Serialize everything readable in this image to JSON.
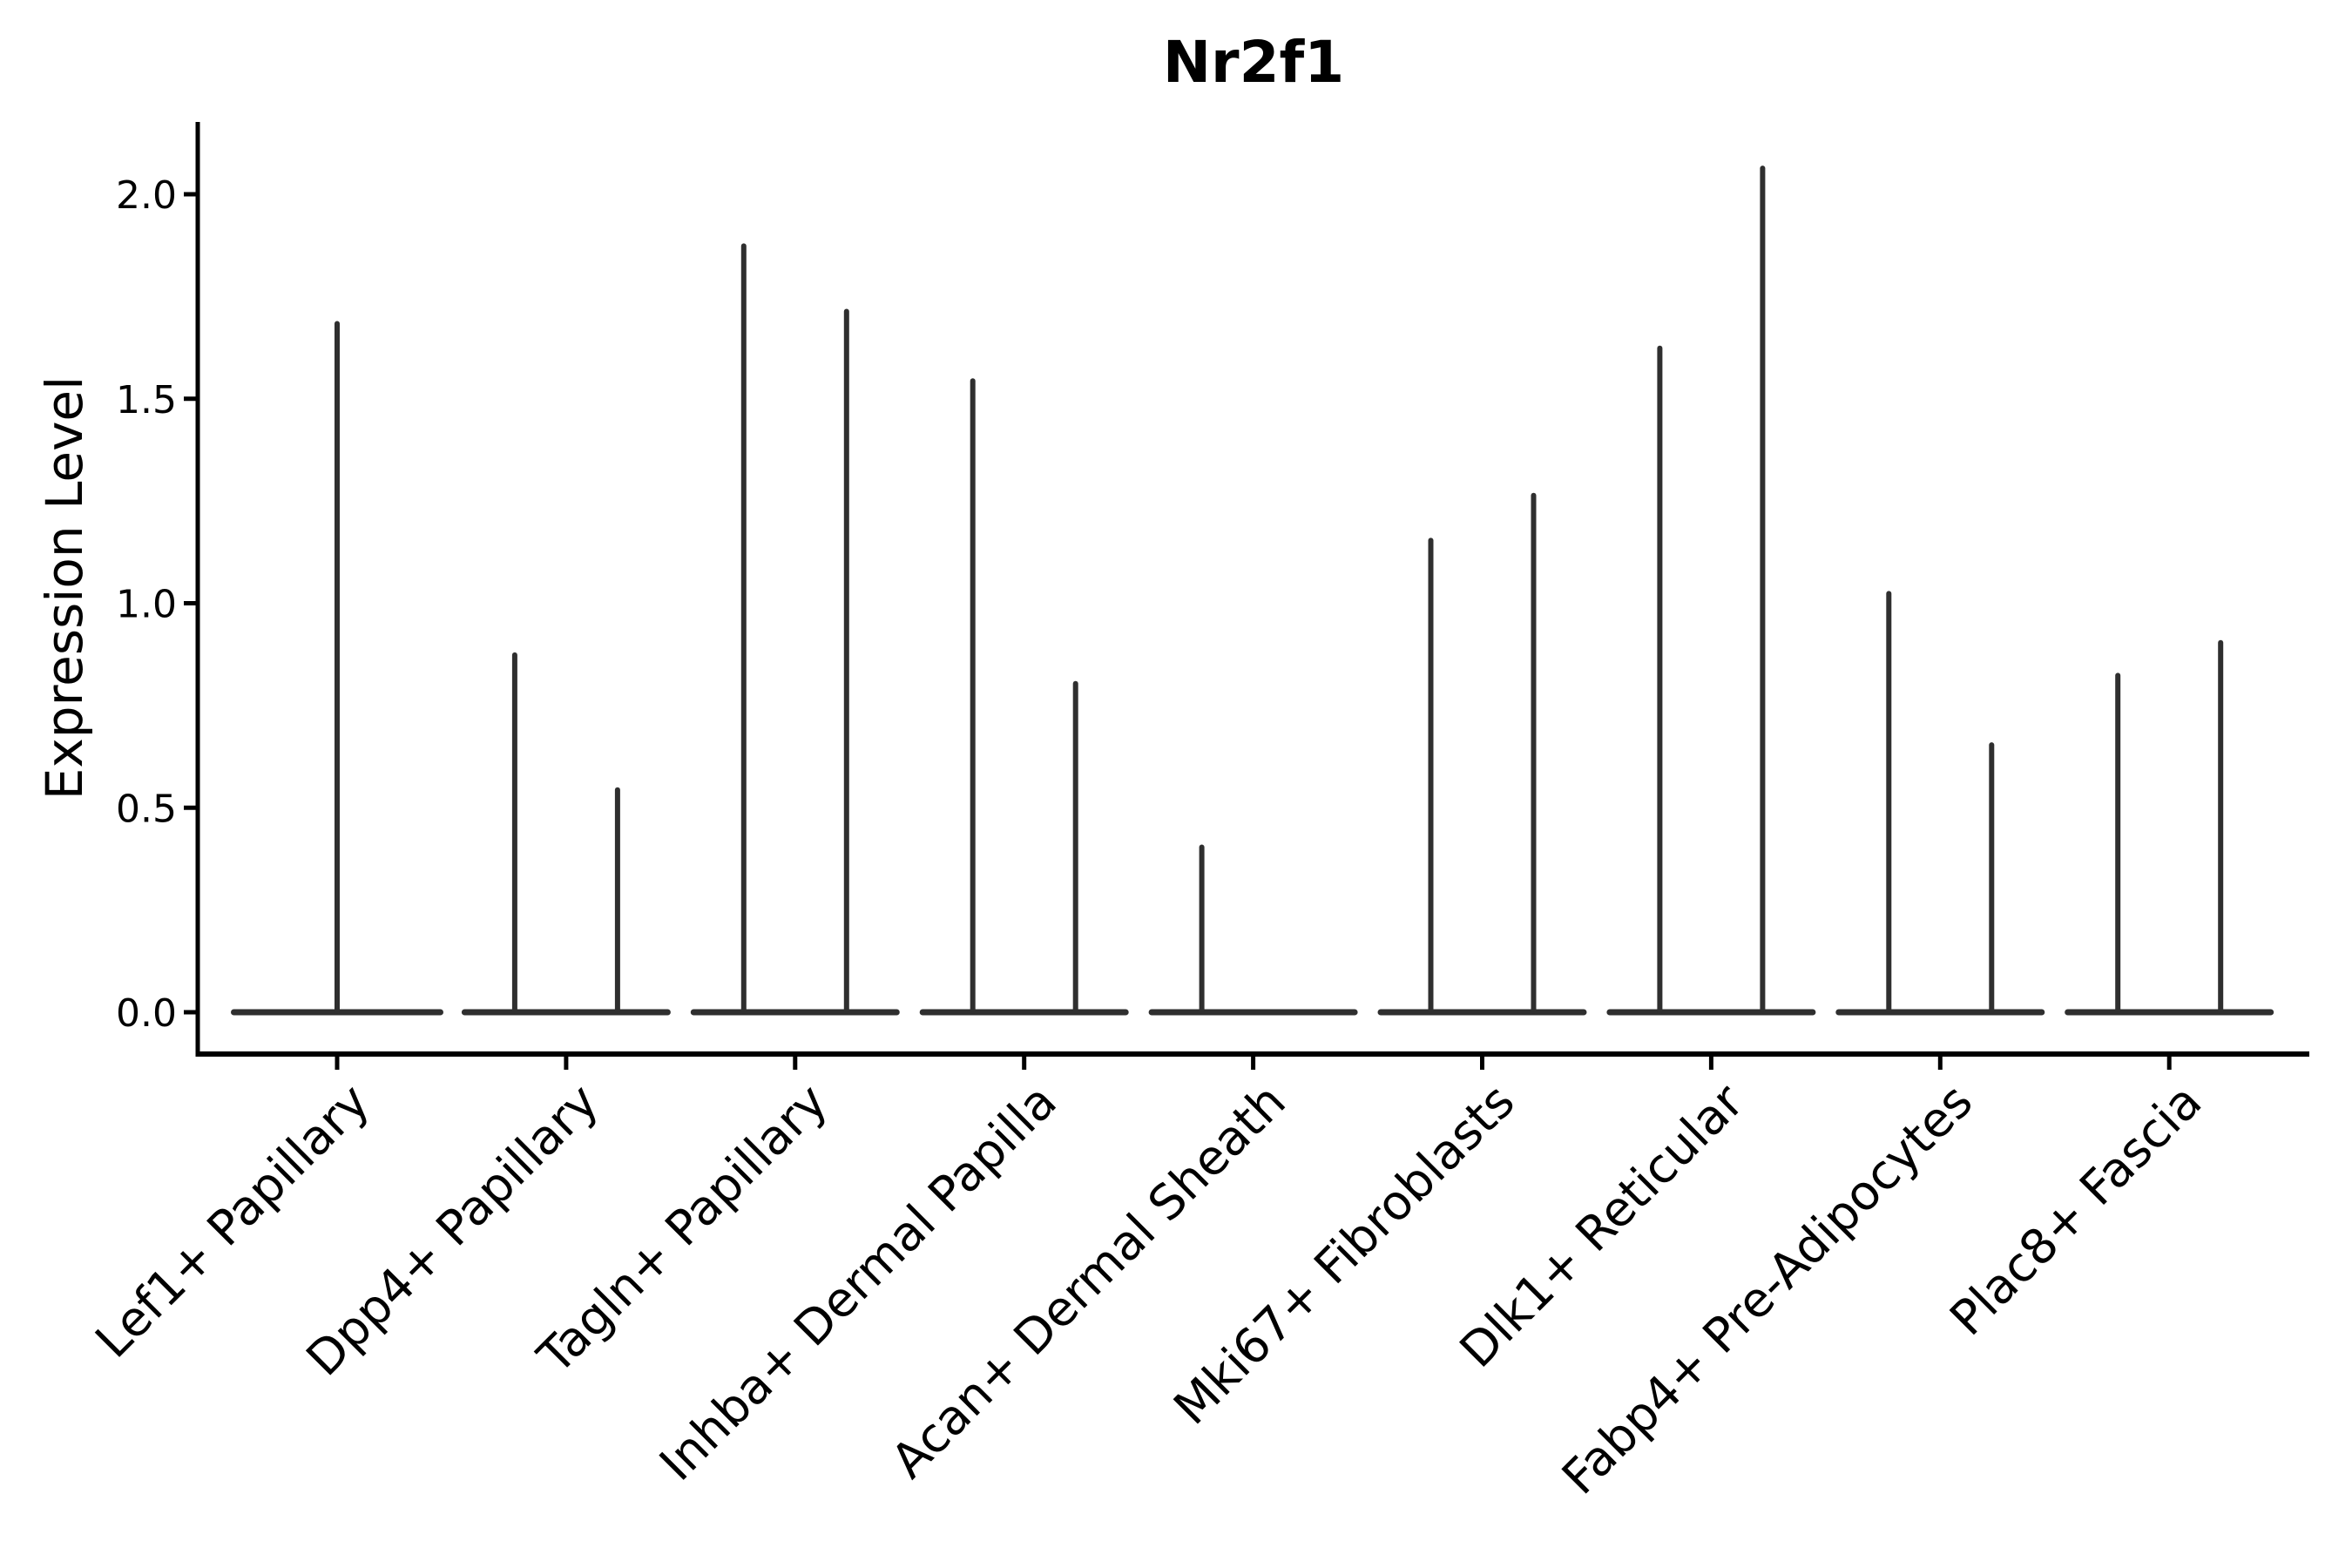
{
  "chart_data": {
    "type": "violin",
    "title": "Nr2f1",
    "xlabel": "",
    "ylabel": "Expression Level",
    "ylim": [
      0,
      2.18
    ],
    "yticks": [
      0.0,
      0.5,
      1.0,
      1.5,
      2.0
    ],
    "ytick_labels": [
      "0.0",
      "0.5",
      "1.0",
      "1.5",
      "2.0"
    ],
    "grid": false,
    "legend_position": "none",
    "style_note": "Seurat-style violin plot; each violin is collapsed onto a flat base at 0 with a single thin density spike rising to its max expression value; no fill color, dark gray strokes",
    "categories": [
      "Lef1+ Papillary",
      "Dpp4+ Papillary",
      "Tagln+ Papillary",
      "Inhba+ Dermal Papilla",
      "Acan+ Dermal Sheath",
      "Mki67+ Fibroblasts",
      "Dlk1+ Reticular",
      "Fabp4+ Pre-Adipocytes",
      "Plac8+ Fascia"
    ],
    "groups": [
      {
        "label": "Lef1+ Papillary",
        "violins": [
          {
            "pos": "center",
            "peak": 1.69
          }
        ]
      },
      {
        "label": "Dpp4+ Papillary",
        "violins": [
          {
            "pos": "left",
            "peak": 0.88
          },
          {
            "pos": "right",
            "peak": 0.55
          }
        ]
      },
      {
        "label": "Tagln+ Papillary",
        "violins": [
          {
            "pos": "left",
            "peak": 1.88
          },
          {
            "pos": "right",
            "peak": 1.72
          }
        ]
      },
      {
        "label": "Inhba+ Dermal Papilla",
        "violins": [
          {
            "pos": "left",
            "peak": 1.55
          },
          {
            "pos": "right",
            "peak": 0.81
          }
        ]
      },
      {
        "label": "Acan+ Dermal Sheath",
        "violins": [
          {
            "pos": "left",
            "peak": 0.41
          },
          {
            "pos": "right",
            "peak": 0.0
          }
        ]
      },
      {
        "label": "Mki67+ Fibroblasts",
        "violins": [
          {
            "pos": "left",
            "peak": 1.16
          },
          {
            "pos": "right",
            "peak": 1.27
          }
        ]
      },
      {
        "label": "Dlk1+ Reticular",
        "violins": [
          {
            "pos": "left",
            "peak": 1.63
          },
          {
            "pos": "right",
            "peak": 2.07
          }
        ]
      },
      {
        "label": "Fabp4+ Pre-Adipocytes",
        "violins": [
          {
            "pos": "left",
            "peak": 1.03
          },
          {
            "pos": "right",
            "peak": 0.66
          }
        ]
      },
      {
        "label": "Plac8+ Fascia",
        "violins": [
          {
            "pos": "left",
            "peak": 0.83
          },
          {
            "pos": "right",
            "peak": 0.91
          }
        ]
      }
    ]
  },
  "colors": {
    "background": "#ffffff",
    "violin": "#2f2f2f",
    "axis": "#000000",
    "text": "#000000"
  }
}
